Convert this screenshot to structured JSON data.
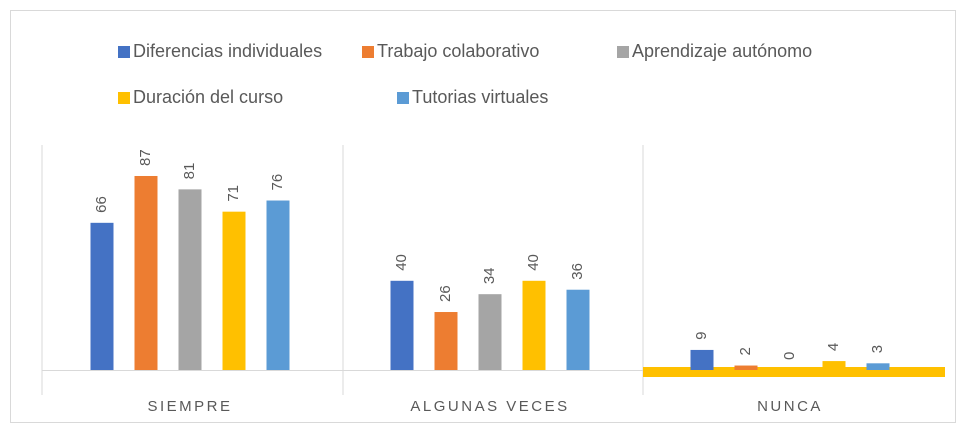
{
  "chart_data": {
    "type": "bar",
    "categories": [
      "SIEMPRE",
      "ALGUNAS VECES",
      "NUNCA"
    ],
    "series": [
      {
        "name": "Diferencias individuales",
        "color": "#4472c4",
        "values": [
          66,
          40,
          9
        ]
      },
      {
        "name": "Trabajo colaborativo",
        "color": "#ed7d31",
        "values": [
          87,
          26,
          2
        ]
      },
      {
        "name": "Aprendizaje autónomo",
        "color": "#a5a5a5",
        "values": [
          81,
          34,
          0
        ]
      },
      {
        "name": "Duración del  curso",
        "color": "#ffc000",
        "values": [
          71,
          40,
          4
        ]
      },
      {
        "name": "Tutorias virtuales",
        "color": "#5b9bd5",
        "values": [
          76,
          36,
          3
        ]
      }
    ],
    "ylim": [
      0,
      100
    ],
    "legend": "top"
  }
}
